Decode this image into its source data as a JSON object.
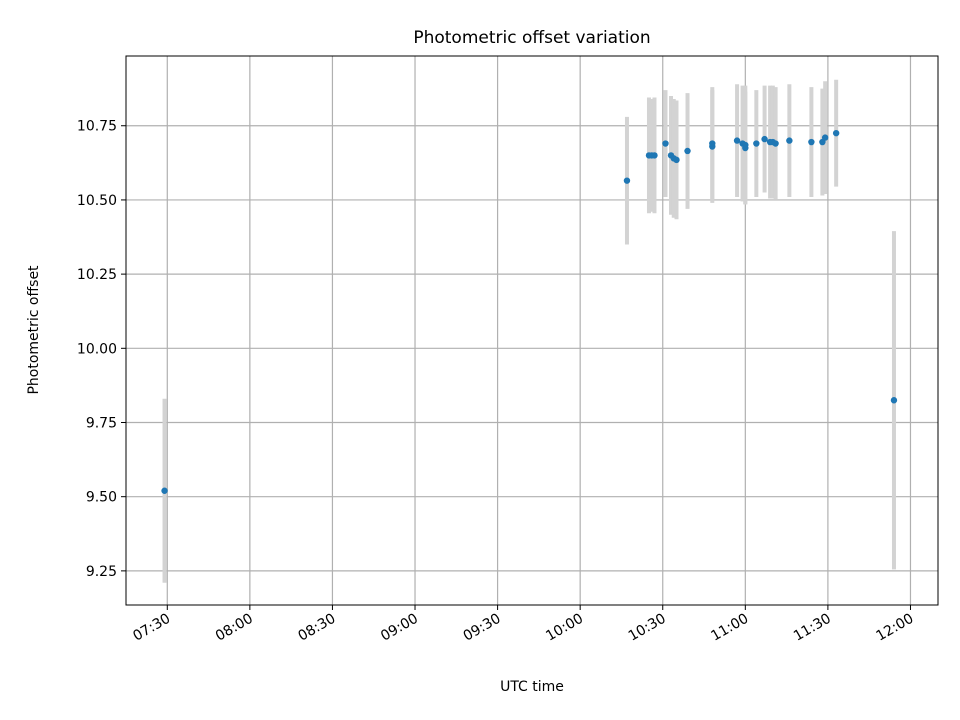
{
  "chart_data": {
    "type": "scatter",
    "title": "Photometric offset variation",
    "xlabel": "UTC time",
    "ylabel": "Photometric offset",
    "grid": true,
    "x_ticks": [
      "07:30",
      "08:00",
      "08:30",
      "09:00",
      "09:30",
      "10:00",
      "10:30",
      "11:00",
      "11:30",
      "12:00"
    ],
    "y_ticks": [
      "9.25",
      "9.50",
      "9.75",
      "10.00",
      "10.25",
      "10.50",
      "10.75"
    ],
    "xlim": [
      "07:15",
      "12:10"
    ],
    "ylim": [
      9.135,
      10.985
    ],
    "marker_color": "#1f77b4",
    "errorbar_color": "#d3d3d3",
    "points": [
      {
        "x": "07:29",
        "y": 9.52,
        "yerr": 0.31
      },
      {
        "x": "10:17",
        "y": 10.565,
        "yerr": 0.215
      },
      {
        "x": "10:25",
        "y": 10.65,
        "yerr": 0.195
      },
      {
        "x": "10:26",
        "y": 10.65,
        "yerr": 0.19
      },
      {
        "x": "10:27",
        "y": 10.65,
        "yerr": 0.195
      },
      {
        "x": "10:31",
        "y": 10.69,
        "yerr": 0.18
      },
      {
        "x": "10:33",
        "y": 10.65,
        "yerr": 0.2
      },
      {
        "x": "10:34",
        "y": 10.64,
        "yerr": 0.2
      },
      {
        "x": "10:35",
        "y": 10.635,
        "yerr": 0.2
      },
      {
        "x": "10:39",
        "y": 10.665,
        "yerr": 0.195
      },
      {
        "x": "10:48",
        "y": 10.68,
        "yerr": 0.19
      },
      {
        "x": "10:48",
        "y": 10.69,
        "yerr": 0.19
      },
      {
        "x": "10:57",
        "y": 10.7,
        "yerr": 0.19
      },
      {
        "x": "10:59",
        "y": 10.69,
        "yerr": 0.195
      },
      {
        "x": "11:00",
        "y": 10.675,
        "yerr": 0.19
      },
      {
        "x": "11:00",
        "y": 10.685,
        "yerr": 0.2
      },
      {
        "x": "11:04",
        "y": 10.69,
        "yerr": 0.18
      },
      {
        "x": "11:07",
        "y": 10.705,
        "yerr": 0.18
      },
      {
        "x": "11:09",
        "y": 10.695,
        "yerr": 0.19
      },
      {
        "x": "11:10",
        "y": 10.695,
        "yerr": 0.19
      },
      {
        "x": "11:11",
        "y": 10.69,
        "yerr": 0.19
      },
      {
        "x": "11:16",
        "y": 10.7,
        "yerr": 0.19
      },
      {
        "x": "11:24",
        "y": 10.695,
        "yerr": 0.185
      },
      {
        "x": "11:28",
        "y": 10.695,
        "yerr": 0.18
      },
      {
        "x": "11:29",
        "y": 10.71,
        "yerr": 0.19
      },
      {
        "x": "11:33",
        "y": 10.725,
        "yerr": 0.18
      },
      {
        "x": "11:54",
        "y": 9.825,
        "yerr": 0.57
      }
    ]
  }
}
